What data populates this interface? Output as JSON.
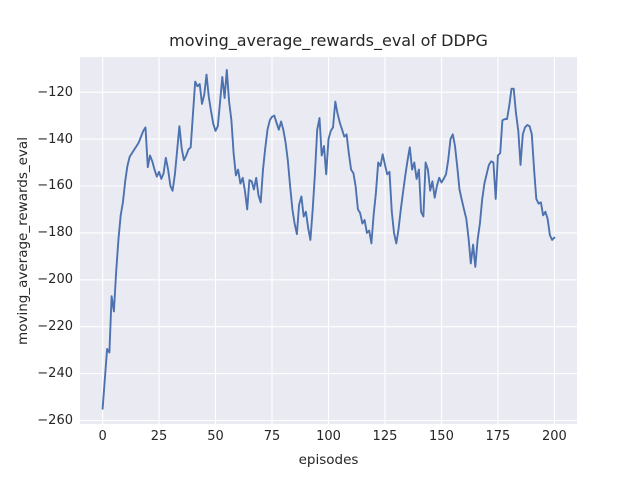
{
  "chart_data": {
    "type": "line",
    "title": "moving_average_rewards_eval of DDPG",
    "xlabel": "episodes",
    "ylabel": "moving_average_rewards_eval",
    "xlim": [
      -10,
      210
    ],
    "ylim": [
      -261.5,
      -105
    ],
    "grid": true,
    "legend": "none",
    "background_color": "#eaeaf2",
    "grid_color": "#ffffff",
    "line_color": "#4c72b0",
    "text_color": "#262626",
    "x_ticks": [
      0,
      25,
      50,
      75,
      100,
      125,
      150,
      175,
      200
    ],
    "x_tick_labels": [
      "0",
      "25",
      "50",
      "75",
      "100",
      "125",
      "150",
      "175",
      "200"
    ],
    "y_ticks": [
      -260,
      -240,
      -220,
      -200,
      -180,
      -160,
      -140,
      -120
    ],
    "y_tick_labels": [
      "−260",
      "−240",
      "−220",
      "−200",
      "−180",
      "−160",
      "−140",
      "−120"
    ],
    "series": [
      {
        "name": "moving_average_rewards_eval",
        "x_start": 0,
        "x_step": 1,
        "y": [
          -255,
          -242,
          -229.5,
          -231,
          -207,
          -213.5,
          -197,
          -183,
          -172.5,
          -167,
          -158,
          -151.5,
          -147.5,
          -146,
          -144.5,
          -143,
          -141.5,
          -139,
          -136.5,
          -135,
          -152,
          -147,
          -149.5,
          -153,
          -156,
          -154,
          -157,
          -154.5,
          -148,
          -153,
          -160,
          -162,
          -155,
          -145,
          -134.5,
          -144,
          -149,
          -147,
          -144.5,
          -143.5,
          -129,
          -115.5,
          -117.5,
          -116.5,
          -125,
          -121,
          -112.5,
          -122,
          -128,
          -133.5,
          -136.5,
          -134.5,
          -124,
          -113.5,
          -122.5,
          -110.5,
          -124,
          -132,
          -146,
          -155.5,
          -153,
          -159,
          -156.5,
          -162,
          -170,
          -157.5,
          -158,
          -161.5,
          -156.5,
          -164,
          -167,
          -153,
          -144,
          -136,
          -132,
          -130.5,
          -130,
          -133,
          -136,
          -132.5,
          -136,
          -141.5,
          -149,
          -160,
          -170,
          -176,
          -180.5,
          -168,
          -164.5,
          -173,
          -171,
          -178,
          -183,
          -170,
          -155,
          -136,
          -131,
          -147,
          -143,
          -155,
          -140,
          -136.5,
          -135,
          -124,
          -129,
          -133,
          -136,
          -139,
          -138,
          -146,
          -153,
          -154.5,
          -160,
          -170,
          -171.5,
          -176,
          -174.5,
          -180,
          -179,
          -184.5,
          -172,
          -163,
          -150,
          -151.5,
          -146.5,
          -151,
          -155,
          -154,
          -171,
          -180,
          -184.5,
          -178.5,
          -170,
          -162.5,
          -155.5,
          -149,
          -143.5,
          -153,
          -150,
          -157,
          -153,
          -171,
          -173,
          -150,
          -153,
          -162,
          -158,
          -165,
          -160,
          -156.5,
          -158.5,
          -157,
          -155,
          -149,
          -140,
          -138,
          -143,
          -152,
          -161.5,
          -166,
          -170,
          -174,
          -182.5,
          -193,
          -185,
          -194.5,
          -183,
          -176,
          -166,
          -159,
          -155,
          -151,
          -149.5,
          -150,
          -165.5,
          -147,
          -146,
          -132,
          -131.5,
          -131.5,
          -126,
          -118.5,
          -118.5,
          -129,
          -136.5,
          -151,
          -138,
          -135,
          -134,
          -134.5,
          -138,
          -153,
          -165.5,
          -167.5,
          -167,
          -172.5,
          -171,
          -174,
          -181,
          -183,
          -182
        ]
      }
    ]
  }
}
